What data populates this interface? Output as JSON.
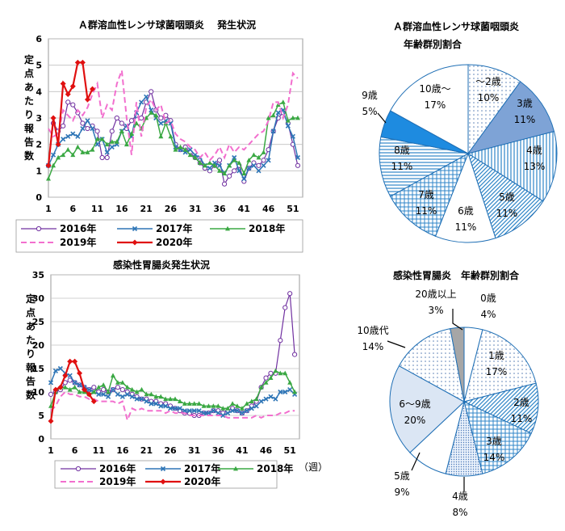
{
  "colors": {
    "s2016": "#7030a0",
    "s2017": "#2e75b6",
    "s2018": "#3aa843",
    "s2019": "#f26fce",
    "s2020": "#e01010",
    "pie_border": "#1f6fb5",
    "grid": "#c0c0c0"
  },
  "chart_data": [
    {
      "id": "strep_line",
      "type": "line",
      "title": "Ａ群溶血性レンサ球菌咽頭炎　 発生状況",
      "ylabel": "定点あたり報告数",
      "xlabel": "",
      "ylim": [
        0,
        6
      ],
      "yticks": [
        "0",
        "1",
        "2",
        "3",
        "4",
        "5",
        "6"
      ],
      "xlim": [
        1,
        53
      ],
      "xticks": [
        "1",
        "6",
        "11",
        "16",
        "21",
        "26",
        "31",
        "36",
        "41",
        "46",
        "51"
      ],
      "series": [
        {
          "name": "2016年",
          "x": [
            1,
            2,
            3,
            4,
            5,
            6,
            7,
            8,
            9,
            10,
            11,
            12,
            13,
            14,
            15,
            16,
            17,
            18,
            19,
            20,
            21,
            22,
            23,
            24,
            25,
            26,
            27,
            28,
            29,
            30,
            31,
            32,
            33,
            34,
            35,
            36,
            37,
            38,
            39,
            40,
            41,
            42,
            43,
            44,
            45,
            46,
            47,
            48,
            49,
            50,
            51,
            52
          ],
          "values": [
            1.2,
            2.8,
            2.5,
            2.7,
            3.6,
            3.5,
            3.2,
            2.8,
            2.6,
            2.7,
            2.5,
            1.5,
            1.5,
            2.5,
            3.0,
            2.8,
            2.6,
            2.9,
            3.1,
            3.0,
            3.6,
            4.0,
            3.3,
            3.0,
            3.1,
            2.9,
            2.0,
            1.8,
            1.9,
            1.7,
            1.5,
            1.3,
            1.1,
            1.0,
            1.2,
            1.4,
            0.5,
            0.8,
            1.0,
            1.2,
            0.6,
            1.1,
            1.3,
            1.2,
            1.4,
            1.8,
            2.5,
            3.0,
            3.2,
            2.8,
            2.0,
            1.2
          ]
        },
        {
          "name": "2017年",
          "x": [
            1,
            2,
            3,
            4,
            5,
            6,
            7,
            8,
            9,
            10,
            11,
            12,
            13,
            14,
            15,
            16,
            17,
            18,
            19,
            20,
            21,
            22,
            23,
            24,
            25,
            26,
            27,
            28,
            29,
            30,
            31,
            32,
            33,
            34,
            35,
            36,
            37,
            38,
            39,
            40,
            41,
            42,
            43,
            44,
            45,
            46,
            47,
            48,
            49,
            50,
            51,
            52
          ],
          "values": [
            1.2,
            1.6,
            2.0,
            2.2,
            2.3,
            2.4,
            2.3,
            2.6,
            2.9,
            2.6,
            2.0,
            2.2,
            1.7,
            1.9,
            2.0,
            2.5,
            2.7,
            2.3,
            3.2,
            3.6,
            3.8,
            3.3,
            3.0,
            2.8,
            2.9,
            2.8,
            1.9,
            1.8,
            1.7,
            1.8,
            1.6,
            1.5,
            1.2,
            1.1,
            1.3,
            1.2,
            0.9,
            1.2,
            1.5,
            1.0,
            0.7,
            1.1,
            1.2,
            1.0,
            1.2,
            1.4,
            2.5,
            3.2,
            3.3,
            2.7,
            2.3,
            1.5
          ]
        },
        {
          "name": "2018年",
          "x": [
            1,
            2,
            3,
            4,
            5,
            6,
            7,
            8,
            9,
            10,
            11,
            12,
            13,
            14,
            15,
            16,
            17,
            18,
            19,
            20,
            21,
            22,
            23,
            24,
            25,
            26,
            27,
            28,
            29,
            30,
            31,
            32,
            33,
            34,
            35,
            36,
            37,
            38,
            39,
            40,
            41,
            42,
            43,
            44,
            45,
            46,
            47,
            48,
            49,
            50,
            51,
            52
          ],
          "values": [
            0.7,
            1.2,
            1.5,
            1.6,
            1.8,
            1.6,
            1.9,
            1.7,
            1.7,
            1.8,
            2.2,
            2.2,
            2.0,
            2.1,
            2.1,
            2.5,
            2.0,
            2.4,
            2.8,
            2.6,
            3.0,
            3.2,
            3.1,
            2.3,
            2.8,
            2.3,
            1.8,
            1.9,
            1.8,
            1.6,
            1.5,
            1.3,
            1.2,
            1.3,
            1.2,
            1.0,
            0.9,
            1.2,
            1.4,
            1.3,
            0.9,
            1.4,
            1.6,
            1.5,
            1.7,
            3.0,
            3.1,
            3.5,
            3.6,
            2.9,
            3.0,
            3.0
          ]
        },
        {
          "name": "2019年",
          "x": [
            1,
            2,
            3,
            4,
            5,
            6,
            7,
            8,
            9,
            10,
            11,
            12,
            13,
            14,
            15,
            16,
            17,
            18,
            19,
            20,
            21,
            22,
            23,
            24,
            25,
            26,
            27,
            28,
            29,
            30,
            31,
            32,
            33,
            34,
            35,
            36,
            37,
            38,
            39,
            40,
            41,
            42,
            43,
            44,
            45,
            46,
            47,
            48,
            49,
            50,
            51,
            52
          ],
          "values": [
            2.6,
            2.3,
            2.4,
            3.3,
            3.1,
            2.9,
            3.3,
            3.1,
            3.4,
            3.9,
            4.3,
            3.0,
            3.5,
            3.3,
            4.3,
            4.8,
            3.0,
            1.6,
            3.6,
            2.3,
            3.4,
            3.7,
            3.3,
            3.5,
            2.8,
            2.9,
            2.4,
            2.2,
            2.1,
            1.9,
            1.8,
            1.5,
            1.7,
            1.4,
            1.6,
            1.9,
            1.5,
            2.0,
            1.7,
            1.9,
            1.8,
            2.0,
            2.2,
            2.4,
            2.5,
            2.9,
            3.6,
            3.6,
            3.0,
            3.5,
            4.7,
            4.5
          ]
        },
        {
          "name": "2020年",
          "x": [
            1,
            2,
            3,
            4,
            5,
            6,
            7,
            8,
            9,
            10
          ],
          "values": [
            1.2,
            3.0,
            2.0,
            4.3,
            3.9,
            4.2,
            5.1,
            5.1,
            3.7,
            4.1
          ]
        }
      ]
    },
    {
      "id": "gastro_line",
      "type": "line",
      "title": "感染性胃腸炎発生状況",
      "ylabel": "定点あたり報告数",
      "xlabel": "（週）",
      "ylim": [
        0,
        35
      ],
      "yticks": [
        "0",
        "5",
        "10",
        "15",
        "20",
        "25",
        "30",
        "35"
      ],
      "xlim": [
        1,
        53
      ],
      "xticks": [
        "1",
        "6",
        "11",
        "16",
        "21",
        "26",
        "31",
        "36",
        "41",
        "46",
        "51"
      ],
      "series": [
        {
          "name": "2016年",
          "x": [
            1,
            2,
            3,
            4,
            5,
            6,
            7,
            8,
            9,
            10,
            11,
            12,
            13,
            14,
            15,
            16,
            17,
            18,
            19,
            20,
            21,
            22,
            23,
            24,
            25,
            26,
            27,
            28,
            29,
            30,
            31,
            32,
            33,
            34,
            35,
            36,
            37,
            38,
            39,
            40,
            41,
            42,
            43,
            44,
            45,
            46,
            47,
            48,
            49,
            50,
            51,
            52
          ],
          "values": [
            9.5,
            10,
            10.5,
            12,
            12.5,
            12,
            11.5,
            11,
            10.5,
            11,
            10,
            10.5,
            10,
            10.5,
            11,
            10.5,
            10,
            9.5,
            9,
            8.5,
            8.5,
            8,
            8,
            7.5,
            7.5,
            7,
            6.5,
            6,
            5.5,
            5.5,
            5,
            5,
            5.5,
            5.5,
            6,
            6,
            5.5,
            6,
            6.5,
            6,
            5.5,
            6,
            7,
            8,
            11,
            13,
            14,
            14,
            21,
            28,
            31,
            18
          ]
        },
        {
          "name": "2017年",
          "x": [
            1,
            2,
            3,
            4,
            5,
            6,
            7,
            8,
            9,
            10,
            11,
            12,
            13,
            14,
            15,
            16,
            17,
            18,
            19,
            20,
            21,
            22,
            23,
            24,
            25,
            26,
            27,
            28,
            29,
            30,
            31,
            32,
            33,
            34,
            35,
            36,
            37,
            38,
            39,
            40,
            41,
            42,
            43,
            44,
            45,
            46,
            47,
            48,
            49,
            50,
            51,
            52
          ],
          "values": [
            12,
            14.5,
            15,
            14,
            13.5,
            12,
            11.5,
            11,
            10.5,
            10,
            9.5,
            9.5,
            9,
            10.5,
            9.5,
            9,
            9.5,
            9,
            8.5,
            8.5,
            8,
            7.5,
            7.5,
            7,
            7,
            6.5,
            6.5,
            6.5,
            6,
            6,
            6,
            6,
            5.5,
            5.5,
            6,
            5.5,
            5,
            5.5,
            6,
            6,
            5.5,
            6,
            6.5,
            7,
            8,
            8.5,
            9,
            8.5,
            10,
            10,
            10.5,
            9.5
          ]
        },
        {
          "name": "2018年",
          "x": [
            1,
            2,
            3,
            4,
            5,
            6,
            7,
            8,
            9,
            10,
            11,
            12,
            13,
            14,
            15,
            16,
            17,
            18,
            19,
            20,
            21,
            22,
            23,
            24,
            25,
            26,
            27,
            28,
            29,
            30,
            31,
            32,
            33,
            34,
            35,
            36,
            37,
            38,
            39,
            40,
            41,
            42,
            43,
            44,
            45,
            46,
            47,
            48,
            49,
            50,
            51,
            52
          ],
          "values": [
            7,
            10,
            11,
            11,
            10.5,
            11,
            10,
            10,
            9.5,
            10,
            11,
            11.5,
            10,
            13.5,
            12,
            12,
            11,
            10.5,
            10,
            10.5,
            9.5,
            9.5,
            9,
            9,
            8.5,
            8.5,
            8.5,
            8,
            7.5,
            7.5,
            7.5,
            7.5,
            7,
            7,
            7,
            7,
            6.5,
            6.5,
            7.5,
            7,
            6.5,
            7.5,
            8,
            8.5,
            11,
            12,
            13,
            14.5,
            14,
            14,
            12,
            10
          ]
        },
        {
          "name": "2019年",
          "x": [
            1,
            2,
            3,
            4,
            5,
            6,
            7,
            8,
            9,
            10,
            11,
            12,
            13,
            14,
            15,
            16,
            17,
            18,
            19,
            20,
            21,
            22,
            23,
            24,
            25,
            26,
            27,
            28,
            29,
            30,
            31,
            32,
            33,
            34,
            35,
            36,
            37,
            38,
            39,
            40,
            41,
            42,
            43,
            44,
            45,
            46,
            47,
            48,
            49,
            50,
            51,
            52
          ],
          "values": [
            6,
            7,
            9,
            10,
            9.5,
            9.5,
            9,
            9,
            8.5,
            8.5,
            8,
            8,
            8,
            8,
            7.5,
            8,
            4,
            6.5,
            6,
            6.5,
            6,
            6,
            6,
            6,
            5.5,
            6,
            5.5,
            5.5,
            5.5,
            5,
            5,
            5,
            5,
            5,
            5,
            5,
            5,
            4.5,
            4.5,
            4.5,
            4.5,
            4.5,
            4.5,
            5,
            4.5,
            5,
            5,
            5,
            5.5,
            5.5,
            6,
            6
          ]
        },
        {
          "name": "2020年",
          "x": [
            1,
            2,
            3,
            4,
            5,
            6,
            7,
            8,
            9,
            10
          ],
          "values": [
            3.8,
            10.5,
            11,
            13.5,
            16.5,
            16.5,
            14,
            10.5,
            9.5,
            8
          ]
        }
      ]
    },
    {
      "id": "strep_pie",
      "type": "pie",
      "title_lines": [
        "Ａ群溶血性レンサ球菌咽頭炎",
        "年齢群別割合"
      ],
      "slices": [
        {
          "label": "～2歳",
          "value": 10,
          "pct": "10%",
          "fill": "dots"
        },
        {
          "label": "3歳",
          "value": 11,
          "pct": "11%",
          "fill": "solidblue"
        },
        {
          "label": "4歳",
          "value": 13,
          "pct": "13%",
          "fill": "vlines"
        },
        {
          "label": "5歳",
          "value": 11,
          "pct": "11%",
          "fill": "dlines"
        },
        {
          "label": "6歳",
          "value": 11,
          "pct": "11%",
          "fill": "white"
        },
        {
          "label": "7歳",
          "value": 11,
          "pct": "11%",
          "fill": "grid"
        },
        {
          "label": "8歳",
          "value": 11,
          "pct": "11%",
          "fill": "hlines"
        },
        {
          "label": "9歳",
          "value": 5,
          "pct": "5%",
          "fill": "solidbright"
        },
        {
          "label": "10歳～",
          "value": 17,
          "pct": "17%",
          "fill": "white"
        }
      ]
    },
    {
      "id": "gastro_pie",
      "type": "pie",
      "title_lines": [
        "感染性胃腸炎　年齢群別割合"
      ],
      "slices": [
        {
          "label": "0歳",
          "value": 4,
          "pct": "4%",
          "fill": "white"
        },
        {
          "label": "1歳",
          "value": 17,
          "pct": "17%",
          "fill": "dots"
        },
        {
          "label": "2歳",
          "value": 11,
          "pct": "11%",
          "fill": "dlines"
        },
        {
          "label": "3歳",
          "value": 14,
          "pct": "14%",
          "fill": "grid"
        },
        {
          "label": "4歳",
          "value": 8,
          "pct": "8%",
          "fill": "smalldots"
        },
        {
          "label": "5歳",
          "value": 9,
          "pct": "9%",
          "fill": "white"
        },
        {
          "label": "6～9歳",
          "value": 20,
          "pct": "20%",
          "fill": "paleblue"
        },
        {
          "label": "10歳代",
          "value": 14,
          "pct": "14%",
          "fill": "dots"
        },
        {
          "label": "20歳以上",
          "value": 3,
          "pct": "3%",
          "fill": "gray"
        }
      ]
    }
  ]
}
